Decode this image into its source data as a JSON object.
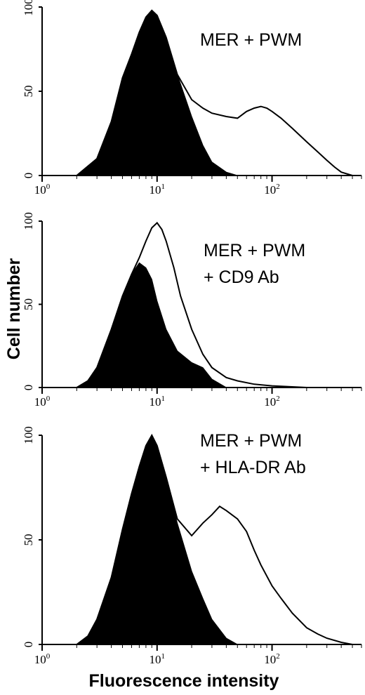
{
  "ylabel": "Cell number",
  "xlabel": "Fluorescence intensity",
  "colors": {
    "filled": "#000000",
    "outline": "#000000",
    "background": "#ffffff"
  },
  "chart_data": [
    {
      "type": "area",
      "title_lines": [
        "MER + PWM"
      ],
      "x_scale": "log",
      "xlim": [
        1,
        600
      ],
      "ylim": [
        0,
        100
      ],
      "y_ticks": [
        "0",
        "50",
        "100"
      ],
      "x_ticks": [
        {
          "base": "10",
          "exp": "0",
          "value": 1
        },
        {
          "base": "10",
          "exp": "1",
          "value": 10
        },
        {
          "base": "10",
          "exp": "2",
          "value": 100
        }
      ],
      "series": [
        {
          "style": "filled",
          "x": [
            2,
            3,
            4,
            5,
            6,
            7,
            8,
            9,
            10,
            12,
            15,
            20,
            25,
            30,
            40,
            50
          ],
          "y": [
            0,
            10,
            32,
            58,
            72,
            85,
            94,
            98,
            95,
            82,
            60,
            35,
            18,
            8,
            2,
            0
          ]
        },
        {
          "style": "outline",
          "x": [
            2,
            3,
            4,
            5,
            6,
            7,
            8,
            9,
            10,
            12,
            15,
            20,
            25,
            30,
            40,
            50,
            60,
            70,
            80,
            90,
            100,
            120,
            150,
            200,
            250,
            300,
            350,
            400,
            500
          ],
          "y": [
            0,
            10,
            32,
            58,
            72,
            85,
            94,
            98,
            95,
            82,
            60,
            45,
            40,
            37,
            35,
            34,
            38,
            40,
            41,
            40,
            38,
            34,
            28,
            20,
            14,
            9,
            5,
            2,
            0
          ]
        }
      ]
    },
    {
      "type": "area",
      "title_lines": [
        "MER + PWM",
        "+ CD9 Ab"
      ],
      "x_scale": "log",
      "xlim": [
        1,
        600
      ],
      "ylim": [
        0,
        100
      ],
      "y_ticks": [
        "0",
        "50",
        "100"
      ],
      "x_ticks": [
        {
          "base": "10",
          "exp": "0",
          "value": 1
        },
        {
          "base": "10",
          "exp": "1",
          "value": 10
        },
        {
          "base": "10",
          "exp": "2",
          "value": 100
        }
      ],
      "series": [
        {
          "style": "filled",
          "x": [
            2,
            2.5,
            3,
            4,
            5,
            6,
            7,
            8,
            9,
            10,
            12,
            15,
            20,
            25,
            30,
            40
          ],
          "y": [
            0,
            4,
            12,
            35,
            55,
            68,
            75,
            72,
            65,
            52,
            35,
            22,
            15,
            12,
            5,
            0
          ]
        },
        {
          "style": "outline",
          "x": [
            2,
            2.5,
            3,
            4,
            5,
            6,
            7,
            8,
            9,
            10,
            11,
            12,
            14,
            16,
            20,
            25,
            30,
            40,
            50,
            70,
            100,
            200
          ],
          "y": [
            0,
            4,
            12,
            35,
            55,
            68,
            78,
            88,
            96,
            99,
            95,
            88,
            72,
            55,
            35,
            20,
            12,
            6,
            4,
            2,
            1,
            0
          ]
        }
      ]
    },
    {
      "type": "area",
      "title_lines": [
        "MER + PWM",
        "+ HLA-DR Ab"
      ],
      "x_scale": "log",
      "xlim": [
        1,
        600
      ],
      "ylim": [
        0,
        100
      ],
      "y_ticks": [
        "0",
        "50",
        "100"
      ],
      "x_ticks": [
        {
          "base": "10",
          "exp": "0",
          "value": 1
        },
        {
          "base": "10",
          "exp": "1",
          "value": 10
        },
        {
          "base": "10",
          "exp": "2",
          "value": 100
        }
      ],
      "series": [
        {
          "style": "filled",
          "x": [
            2,
            2.5,
            3,
            4,
            5,
            6,
            7,
            8,
            9,
            10,
            12,
            15,
            20,
            25,
            30,
            40,
            50
          ],
          "y": [
            0,
            4,
            12,
            32,
            55,
            72,
            85,
            95,
            100,
            95,
            80,
            58,
            35,
            22,
            12,
            3,
            0
          ]
        },
        {
          "style": "outline",
          "x": [
            2,
            2.5,
            3,
            4,
            5,
            6,
            7,
            8,
            9,
            10,
            12,
            15,
            20,
            25,
            30,
            35,
            40,
            50,
            60,
            70,
            80,
            100,
            120,
            150,
            200,
            250,
            300,
            400,
            500
          ],
          "y": [
            0,
            4,
            12,
            32,
            55,
            72,
            85,
            95,
            100,
            95,
            80,
            60,
            52,
            58,
            62,
            66,
            64,
            60,
            54,
            45,
            38,
            28,
            22,
            15,
            8,
            5,
            3,
            1,
            0
          ]
        }
      ]
    }
  ]
}
